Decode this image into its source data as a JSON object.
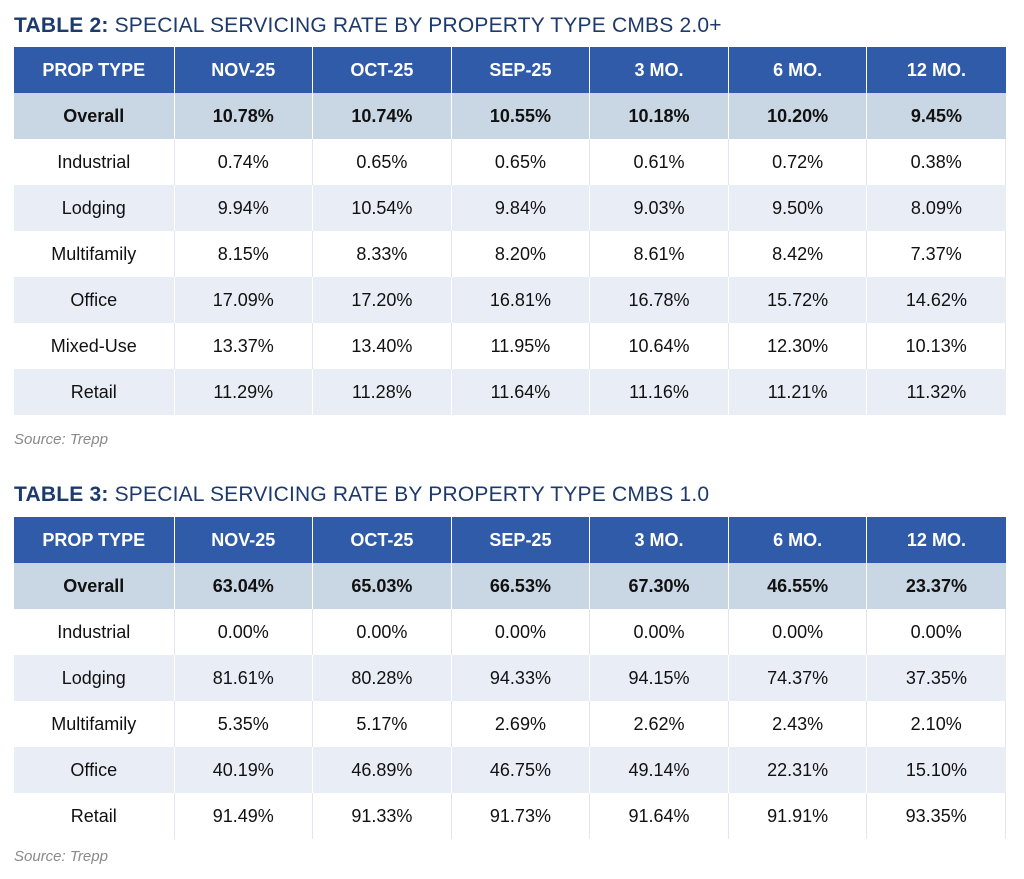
{
  "tables": [
    {
      "title_prefix": "TABLE 2:",
      "title_text": " SPECIAL SERVICING RATE BY PROPERTY TYPE CMBS 2.0+",
      "headers": [
        "PROP TYPE",
        "NOV-25",
        "OCT-25",
        "SEP-25",
        "3 MO.",
        "6 MO.",
        "12 MO."
      ],
      "rows": [
        [
          "Overall",
          "10.78%",
          "10.74%",
          "10.55%",
          "10.18%",
          "10.20%",
          "9.45%"
        ],
        [
          "Industrial",
          "0.74%",
          "0.65%",
          "0.65%",
          "0.61%",
          "0.72%",
          "0.38%"
        ],
        [
          "Lodging",
          "9.94%",
          "10.54%",
          "9.84%",
          "9.03%",
          "9.50%",
          "8.09%"
        ],
        [
          "Multifamily",
          "8.15%",
          "8.33%",
          "8.20%",
          "8.61%",
          "8.42%",
          "7.37%"
        ],
        [
          "Office",
          "17.09%",
          "17.20%",
          "16.81%",
          "16.78%",
          "15.72%",
          "14.62%"
        ],
        [
          "Mixed-Use",
          "13.37%",
          "13.40%",
          "11.95%",
          "10.64%",
          "12.30%",
          "10.13%"
        ],
        [
          "Retail",
          "11.29%",
          "11.28%",
          "11.64%",
          "11.16%",
          "11.21%",
          "11.32%"
        ]
      ],
      "source": "Source: Trepp"
    },
    {
      "title_prefix": "TABLE 3:",
      "title_text": " SPECIAL SERVICING RATE BY PROPERTY TYPE CMBS 1.0",
      "headers": [
        "PROP TYPE",
        "NOV-25",
        "OCT-25",
        "SEP-25",
        "3 MO.",
        "6 MO.",
        "12 MO."
      ],
      "rows": [
        [
          "Overall",
          "63.04%",
          "65.03%",
          "66.53%",
          "67.30%",
          "46.55%",
          "23.37%"
        ],
        [
          "Industrial",
          "0.00%",
          "0.00%",
          "0.00%",
          "0.00%",
          "0.00%",
          "0.00%"
        ],
        [
          "Lodging",
          "81.61%",
          "80.28%",
          "94.33%",
          "94.15%",
          "74.37%",
          "37.35%"
        ],
        [
          "Multifamily",
          "5.35%",
          "5.17%",
          "2.69%",
          "2.62%",
          "2.43%",
          "2.10%"
        ],
        [
          "Office",
          "40.19%",
          "46.89%",
          "46.75%",
          "49.14%",
          "22.31%",
          "15.10%"
        ],
        [
          "Retail",
          "91.49%",
          "91.33%",
          "91.73%",
          "91.64%",
          "91.91%",
          "93.35%"
        ]
      ],
      "source": "Source: Trepp"
    }
  ],
  "colors": {
    "header_bg": "#2f5ba8",
    "title": "#1c3a6b",
    "overall_row": "#c9d6e3",
    "alt_row": "#e9eef6"
  }
}
